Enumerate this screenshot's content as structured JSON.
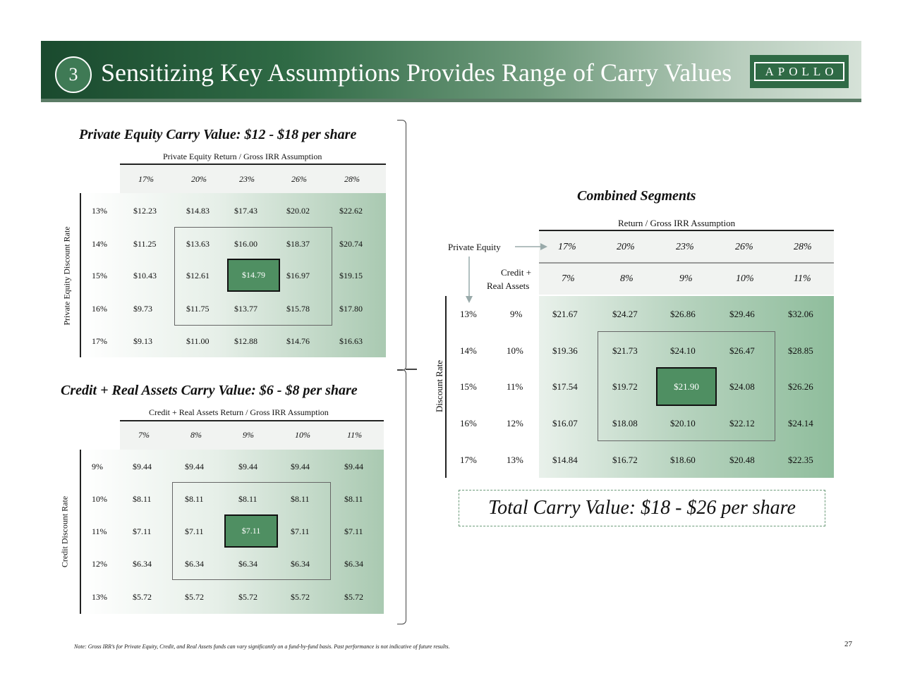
{
  "header": {
    "number": "3",
    "title": "Sensitizing Key Assumptions Provides Range of Carry Values",
    "logo": "APOLLO"
  },
  "pe": {
    "title": "Private Equity Carry Value: $12 - $18 per share",
    "col_caption": "Private Equity Return / Gross IRR Assumption",
    "row_caption": "Private Equity Discount Rate",
    "cols": [
      "17%",
      "20%",
      "23%",
      "26%",
      "28%"
    ],
    "rows": [
      {
        "rate": "13%",
        "values": [
          "$12.23",
          "$14.83",
          "$17.43",
          "$20.02",
          "$22.62"
        ]
      },
      {
        "rate": "14%",
        "values": [
          "$11.25",
          "$13.63",
          "$16.00",
          "$18.37",
          "$20.74"
        ]
      },
      {
        "rate": "15%",
        "values": [
          "$10.43",
          "$12.61",
          "$14.79",
          "$16.97",
          "$19.15"
        ]
      },
      {
        "rate": "16%",
        "values": [
          "$9.73",
          "$11.75",
          "$13.77",
          "$15.78",
          "$17.80"
        ]
      },
      {
        "rate": "17%",
        "values": [
          "$9.13",
          "$11.00",
          "$12.88",
          "$14.76",
          "$16.63"
        ]
      }
    ]
  },
  "credit": {
    "title": "Credit + Real Assets Carry Value: $6 - $8 per share",
    "col_caption": "Credit + Real Assets Return / Gross IRR Assumption",
    "row_caption": "Credit Discount Rate",
    "cols": [
      "7%",
      "8%",
      "9%",
      "10%",
      "11%"
    ],
    "rows": [
      {
        "rate": "9%",
        "values": [
          "$9.44",
          "$9.44",
          "$9.44",
          "$9.44",
          "$9.44"
        ]
      },
      {
        "rate": "10%",
        "values": [
          "$8.11",
          "$8.11",
          "$8.11",
          "$8.11",
          "$8.11"
        ]
      },
      {
        "rate": "11%",
        "values": [
          "$7.11",
          "$7.11",
          "$7.11",
          "$7.11",
          "$7.11"
        ]
      },
      {
        "rate": "12%",
        "values": [
          "$6.34",
          "$6.34",
          "$6.34",
          "$6.34",
          "$6.34"
        ]
      },
      {
        "rate": "13%",
        "values": [
          "$5.72",
          "$5.72",
          "$5.72",
          "$5.72",
          "$5.72"
        ]
      }
    ]
  },
  "combined": {
    "title": "Combined Segments",
    "col_caption": "Return / Gross IRR Assumption",
    "pe_label": "Private Equity",
    "credit_label_1": "Credit +",
    "credit_label_2": "Real Assets",
    "row_caption": "Discount Rate",
    "pe_cols": [
      "17%",
      "20%",
      "23%",
      "26%",
      "28%"
    ],
    "credit_cols": [
      "7%",
      "8%",
      "9%",
      "10%",
      "11%"
    ],
    "rows": [
      {
        "pe_rate": "13%",
        "credit_rate": "9%",
        "values": [
          "$21.67",
          "$24.27",
          "$26.86",
          "$29.46",
          "$32.06"
        ]
      },
      {
        "pe_rate": "14%",
        "credit_rate": "10%",
        "values": [
          "$19.36",
          "$21.73",
          "$24.10",
          "$26.47",
          "$28.85"
        ]
      },
      {
        "pe_rate": "15%",
        "credit_rate": "11%",
        "values": [
          "$17.54",
          "$19.72",
          "$21.90",
          "$24.08",
          "$26.26"
        ]
      },
      {
        "pe_rate": "16%",
        "credit_rate": "12%",
        "values": [
          "$16.07",
          "$18.08",
          "$20.10",
          "$22.12",
          "$24.14"
        ]
      },
      {
        "pe_rate": "17%",
        "credit_rate": "13%",
        "values": [
          "$14.84",
          "$16.72",
          "$18.60",
          "$20.48",
          "$22.35"
        ]
      }
    ]
  },
  "total": "Total Carry Value: $18 - $26 per share",
  "note": "Note: Gross IRR’s for Private Equity, Credit, and Real Assets funds can vary significantly on a fund-by-fund basis. Past performance is not indicative of future results.",
  "page_number": "27"
}
